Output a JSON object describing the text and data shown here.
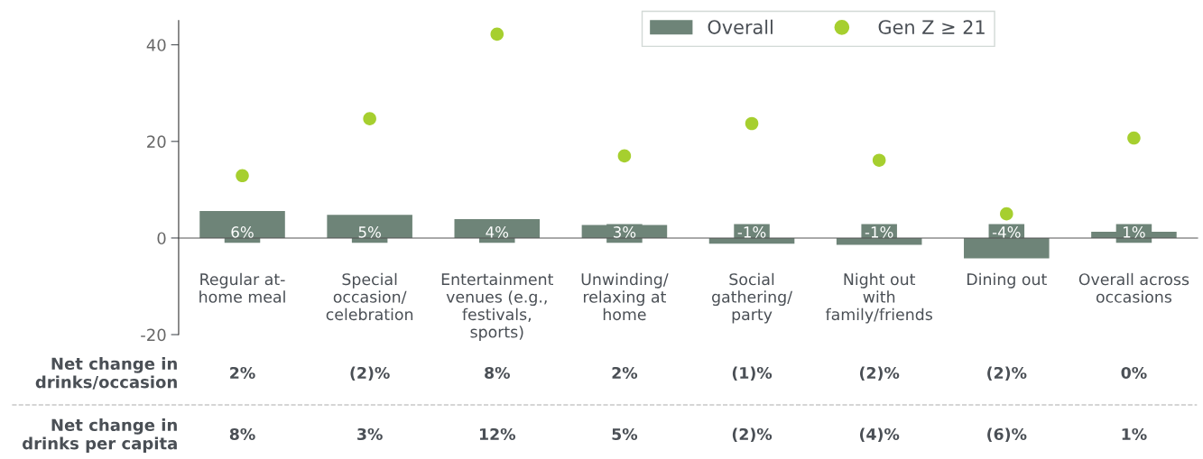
{
  "chart_data": {
    "type": "bar",
    "categories": [
      "Regular at-\nhome meal",
      "Special\noccasion/\ncelebration",
      "Entertainment\nvenues (e.g.,\nfestivals,\nsports)",
      "Unwinding/\nrelaxing at\nhome",
      "Social\ngathering/\nparty",
      "Night out\nwith\nfamily/friends",
      "Dining out",
      "Overall across\noccasions"
    ],
    "series": [
      {
        "name": "Overall",
        "color": "#6e8478",
        "values": [
          5.6,
          4.8,
          3.9,
          2.7,
          -1.2,
          -1.4,
          -4.2,
          1.3
        ],
        "value_labels": [
          "6%",
          "5%",
          "4%",
          "3%",
          "-1%",
          "-1%",
          "-4%",
          "1%"
        ]
      },
      {
        "name": "Gen Z ≥ 21",
        "type": "scatter",
        "color": "#a6cf2f",
        "values": [
          12.9,
          24.7,
          42.2,
          17.0,
          23.7,
          16.1,
          5.0,
          20.7
        ]
      }
    ],
    "ylim": [
      -20,
      45
    ],
    "yticks": [
      -20,
      0,
      20,
      40
    ],
    "grid": false,
    "legend": "top right",
    "marker": "circle",
    "annotations": [
      "Net change in\ndrinks/occasion",
      "2%",
      "(2)%",
      "8%",
      "2%",
      "(1)%",
      "(2)%",
      "(2)%",
      "0%",
      "Net change in\ndrinks per capita",
      "8%",
      "3%",
      "12%",
      "5%",
      "(2)%",
      "(4)%",
      "(6)%",
      "1%"
    ]
  }
}
